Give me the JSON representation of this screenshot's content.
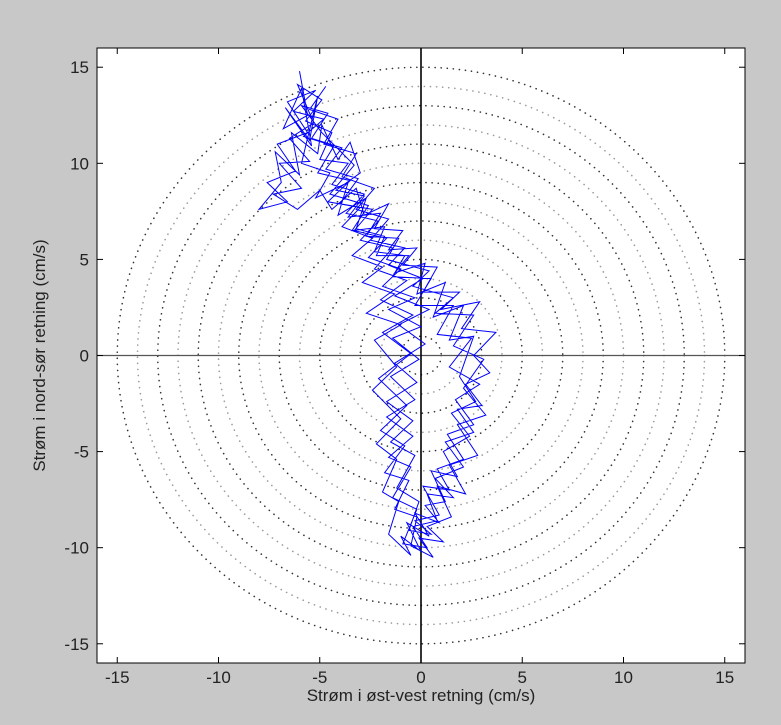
{
  "chart_data": {
    "type": "line",
    "title": "",
    "xlabel": "Strøm i øst-vest retning (cm/s)",
    "ylabel": "Strøm i nord-sør retning (cm/s)",
    "xlim": [
      -16,
      16
    ],
    "ylim": [
      -16,
      16
    ],
    "xticks": [
      -15,
      -10,
      -5,
      0,
      5,
      10,
      15
    ],
    "yticks": [
      -15,
      -10,
      -5,
      0,
      5,
      10,
      15
    ],
    "xtick_labels": [
      "-15",
      "-10",
      "-5",
      "0",
      "5",
      "10",
      "15"
    ],
    "ytick_labels": [
      "-15",
      "-10",
      "-5",
      "0",
      "5",
      "10",
      "15"
    ],
    "grid": false,
    "reference_circles": {
      "style": "dotted",
      "radii": [
        1,
        2,
        3,
        4,
        5,
        6,
        7,
        8,
        9,
        10,
        11,
        12,
        13,
        14,
        15
      ]
    },
    "series": [
      {
        "color": "#0000ff",
        "trace": [
          [
            -6.0,
            14.8
          ],
          [
            -5.6,
            12.5
          ],
          [
            -6.8,
            11.8
          ],
          [
            -5.9,
            13.9
          ],
          [
            -5.4,
            10.9
          ],
          [
            -6.7,
            12.9
          ],
          [
            -5.5,
            11.2
          ],
          [
            -5.1,
            13.5
          ],
          [
            -5.9,
            10.0
          ],
          [
            -4.5,
            9.5
          ],
          [
            -5.2,
            8.2
          ],
          [
            -3.6,
            9.0
          ],
          [
            -4.1,
            7.3
          ],
          [
            -2.7,
            8.2
          ],
          [
            -3.2,
            6.6
          ],
          [
            -1.8,
            6.2
          ],
          [
            -2.2,
            5.2
          ],
          [
            -0.6,
            5.2
          ],
          [
            -1.3,
            4.3
          ],
          [
            0.2,
            4.8
          ],
          [
            -0.2,
            3.2
          ],
          [
            1.2,
            3.8
          ],
          [
            0.6,
            2.0
          ],
          [
            2.1,
            2.6
          ],
          [
            1.4,
            0.8
          ],
          [
            2.6,
            1.0
          ],
          [
            1.9,
            -1.1
          ],
          [
            2.7,
            -2.4
          ],
          [
            1.5,
            -3.0
          ],
          [
            2.4,
            -4.2
          ],
          [
            1.1,
            -5.0
          ],
          [
            1.8,
            -6.3
          ],
          [
            0.5,
            -6.0
          ],
          [
            1.2,
            -7.6
          ],
          [
            0.2,
            -7.8
          ],
          [
            0.9,
            -8.7
          ],
          [
            -0.3,
            -8.2
          ],
          [
            0.4,
            -9.4
          ],
          [
            -0.7,
            -8.7
          ],
          [
            0.0,
            -10.2
          ],
          [
            -1.0,
            -9.4
          ],
          [
            -0.5,
            -10.4
          ],
          [
            -1.6,
            -9.3
          ],
          [
            -1.1,
            -7.6
          ],
          [
            -1.9,
            -7.1
          ],
          [
            -1.2,
            -5.4
          ],
          [
            -2.2,
            -4.6
          ],
          [
            -1.0,
            -3.3
          ],
          [
            -2.4,
            -1.8
          ],
          [
            -1.2,
            -0.6
          ],
          [
            -2.3,
            0.8
          ],
          [
            -1.0,
            1.6
          ],
          [
            -2.7,
            2.2
          ],
          [
            -1.3,
            3.2
          ],
          [
            -2.9,
            3.8
          ],
          [
            -1.9,
            4.6
          ],
          [
            -3.4,
            5.2
          ],
          [
            -2.4,
            6.1
          ],
          [
            -3.9,
            6.7
          ],
          [
            -3.0,
            7.7
          ],
          [
            -4.6,
            8.0
          ],
          [
            -3.5,
            9.1
          ],
          [
            -5.1,
            9.5
          ],
          [
            -4.3,
            10.9
          ],
          [
            -5.8,
            11.4
          ],
          [
            -4.8,
            12.3
          ],
          [
            -6.3,
            12.7
          ],
          [
            -5.2,
            13.8
          ],
          [
            -6.6,
            13.2
          ],
          [
            -5.6,
            11.6
          ],
          [
            -7.1,
            11.0
          ],
          [
            -6.2,
            9.6
          ],
          [
            -7.6,
            9.0
          ],
          [
            -6.6,
            8.0
          ],
          [
            -8.0,
            7.6
          ],
          [
            -6.9,
            9.0
          ],
          [
            -7.2,
            10.6
          ],
          [
            -6.0,
            9.4
          ],
          [
            -6.4,
            11.6
          ],
          [
            -5.1,
            10.5
          ],
          [
            -4.9,
            12.0
          ],
          [
            -4.1,
            10.2
          ],
          [
            -3.5,
            11.1
          ],
          [
            -3.0,
            9.5
          ],
          [
            -4.2,
            8.6
          ],
          [
            -2.8,
            8.3
          ],
          [
            -3.6,
            7.2
          ],
          [
            -2.0,
            7.4
          ],
          [
            -2.7,
            6.2
          ],
          [
            -1.1,
            6.1
          ],
          [
            -1.7,
            5.0
          ],
          [
            0.4,
            4.4
          ],
          [
            -0.4,
            3.6
          ],
          [
            1.6,
            3.0
          ],
          [
            0.7,
            2.2
          ],
          [
            2.6,
            2.1
          ],
          [
            1.6,
            0.5
          ],
          [
            3.1,
            -0.2
          ],
          [
            2.1,
            -1.7
          ],
          [
            3.2,
            -3.1
          ],
          [
            1.8,
            -3.6
          ],
          [
            2.8,
            -5.2
          ],
          [
            1.4,
            -5.7
          ],
          [
            2.2,
            -7.2
          ],
          [
            0.8,
            -6.8
          ],
          [
            1.5,
            -8.4
          ],
          [
            0.3,
            -8.9
          ],
          [
            1.1,
            -9.7
          ],
          [
            -0.1,
            -9.5
          ],
          [
            0.6,
            -10.5
          ],
          [
            -0.5,
            -9.9
          ],
          [
            -0.2,
            -8.4
          ],
          [
            -1.3,
            -8.0
          ],
          [
            -0.6,
            -6.5
          ],
          [
            -1.8,
            -6.1
          ],
          [
            -0.8,
            -4.7
          ],
          [
            -2.0,
            -3.9
          ],
          [
            -0.7,
            -2.6
          ],
          [
            -2.1,
            -1.2
          ],
          [
            -0.5,
            0.1
          ],
          [
            -1.9,
            1.2
          ],
          [
            -0.4,
            2.1
          ],
          [
            -2.0,
            2.9
          ],
          [
            -0.7,
            3.9
          ],
          [
            -2.3,
            4.5
          ],
          [
            -1.4,
            5.6
          ],
          [
            -3.0,
            6.0
          ],
          [
            -2.1,
            7.0
          ],
          [
            -3.7,
            7.4
          ],
          [
            -2.8,
            8.4
          ],
          [
            -4.4,
            8.9
          ],
          [
            -3.6,
            10.0
          ],
          [
            -5.0,
            10.2
          ],
          [
            -4.4,
            11.6
          ],
          [
            -5.7,
            12.2
          ],
          [
            -4.9,
            13.3
          ],
          [
            -6.1,
            14.1
          ],
          [
            -5.3,
            12.1
          ],
          [
            -6.5,
            11.3
          ],
          [
            -5.5,
            10.1
          ],
          [
            -7.0,
            10.0
          ],
          [
            -5.9,
            8.7
          ],
          [
            -7.3,
            8.4
          ],
          [
            -6.1,
            7.6
          ],
          [
            -5.0,
            8.6
          ],
          [
            -4.4,
            7.6
          ],
          [
            -3.2,
            8.7
          ],
          [
            -2.8,
            7.3
          ],
          [
            -1.6,
            7.9
          ],
          [
            -2.3,
            6.6
          ],
          [
            -0.9,
            6.5
          ],
          [
            -1.6,
            5.5
          ],
          [
            -0.2,
            5.6
          ],
          [
            -0.9,
            4.7
          ],
          [
            0.8,
            4.6
          ],
          [
            0.1,
            3.3
          ],
          [
            1.9,
            3.3
          ],
          [
            1.0,
            2.4
          ],
          [
            2.9,
            2.8
          ],
          [
            2.0,
            1.4
          ],
          [
            3.7,
            1.2
          ],
          [
            2.6,
            0.0
          ],
          [
            3.4,
            -0.9
          ],
          [
            2.2,
            -1.5
          ],
          [
            3.0,
            -2.6
          ],
          [
            1.8,
            -2.8
          ],
          [
            2.6,
            -4.0
          ],
          [
            1.2,
            -4.5
          ],
          [
            2.1,
            -5.8
          ],
          [
            0.7,
            -6.4
          ],
          [
            1.6,
            -7.4
          ],
          [
            0.3,
            -7.2
          ],
          [
            0.8,
            -8.6
          ],
          [
            -0.4,
            -8.9
          ],
          [
            0.3,
            -10.0
          ],
          [
            -0.9,
            -9.8
          ],
          [
            -0.2,
            -8.0
          ],
          [
            -1.4,
            -7.4
          ],
          [
            -0.5,
            -5.8
          ],
          [
            -1.6,
            -5.3
          ],
          [
            -0.4,
            -4.2
          ],
          [
            -1.7,
            -3.2
          ],
          [
            -0.3,
            -2.3
          ],
          [
            -1.5,
            -1.1
          ],
          [
            -0.1,
            -0.2
          ],
          [
            -1.4,
            0.9
          ],
          [
            0.0,
            1.5
          ],
          [
            -1.6,
            2.4
          ],
          [
            -0.3,
            3.0
          ],
          [
            -1.9,
            3.6
          ],
          [
            -1.0,
            4.5
          ],
          [
            -2.6,
            5.1
          ],
          [
            -1.7,
            6.1
          ],
          [
            -3.3,
            6.5
          ],
          [
            -2.4,
            7.6
          ],
          [
            -4.0,
            7.9
          ],
          [
            -3.1,
            9.2
          ],
          [
            -4.7,
            9.7
          ],
          [
            -3.9,
            10.8
          ],
          [
            -5.4,
            11.3
          ],
          [
            -4.6,
            12.6
          ],
          [
            -5.9,
            13.0
          ],
          [
            -4.9,
            11.6
          ],
          [
            -3.3,
            9.9
          ],
          [
            -4.5,
            8.4
          ],
          [
            -2.6,
            7.8
          ],
          [
            -3.4,
            6.5
          ],
          [
            -1.8,
            6.7
          ],
          [
            -2.3,
            5.4
          ],
          [
            -0.8,
            5.2
          ],
          [
            -1.4,
            4.1
          ],
          [
            0.5,
            4.0
          ],
          [
            -0.3,
            2.6
          ],
          [
            1.6,
            2.6
          ],
          [
            0.8,
            1.1
          ],
          [
            2.5,
            0.9
          ],
          [
            1.4,
            -0.6
          ],
          [
            2.9,
            -1.5
          ],
          [
            1.7,
            -2.3
          ],
          [
            2.6,
            -3.6
          ],
          [
            1.3,
            -4.1
          ],
          [
            2.1,
            -5.4
          ],
          [
            0.8,
            -5.9
          ],
          [
            1.4,
            -7.0
          ],
          [
            0.1,
            -6.8
          ],
          [
            0.9,
            -8.3
          ],
          [
            -0.3,
            -8.6
          ],
          [
            0.5,
            -9.3
          ],
          [
            -0.6,
            -9.1
          ],
          [
            -0.1,
            -7.6
          ],
          [
            -1.2,
            -6.9
          ],
          [
            -0.3,
            -5.2
          ],
          [
            -1.5,
            -4.5
          ],
          [
            -0.4,
            -3.4
          ],
          [
            -1.7,
            -2.4
          ],
          [
            -0.2,
            -1.4
          ],
          [
            -1.3,
            -0.4
          ],
          [
            0.2,
            0.6
          ],
          [
            -1.1,
            1.6
          ],
          [
            0.4,
            2.4
          ],
          [
            -1.3,
            3.1
          ],
          [
            0.1,
            4.0
          ],
          [
            -1.6,
            4.7
          ],
          [
            -0.8,
            5.6
          ],
          [
            -2.5,
            6.0
          ],
          [
            -1.6,
            7.1
          ],
          [
            -3.2,
            7.6
          ],
          [
            -2.3,
            8.7
          ],
          [
            -3.9,
            9.3
          ],
          [
            -3.2,
            10.5
          ],
          [
            -4.8,
            11.0
          ],
          [
            -4.1,
            12.3
          ],
          [
            -5.5,
            12.8
          ],
          [
            -4.7,
            14.0
          ]
        ]
      }
    ]
  }
}
